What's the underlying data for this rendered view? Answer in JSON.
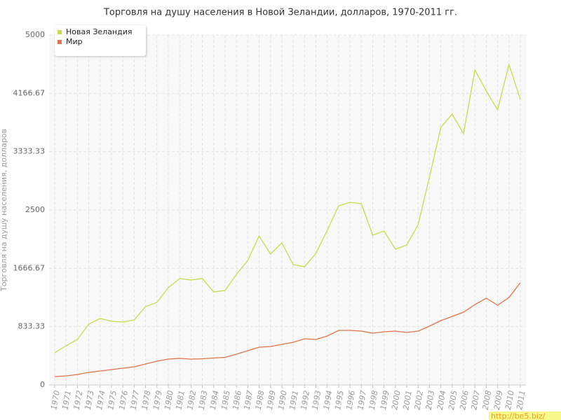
{
  "chart_data": {
    "type": "line",
    "title": "Торговля на душу населения в Новой Зеландии, долларов, 1970-2011 гг.",
    "y_label": "Торговля на душу населения, долларов",
    "watermark": "http://be5.biz/",
    "categories": [
      "1970",
      "1971",
      "1972",
      "1973",
      "1974",
      "1975",
      "1976",
      "1977",
      "1978",
      "1979",
      "1980",
      "1981",
      "1982",
      "1983",
      "1984",
      "1985",
      "1986",
      "1987",
      "1988",
      "1989",
      "1990",
      "1991",
      "1992",
      "1993",
      "1994",
      "1995",
      "1996",
      "1997",
      "1998",
      "1999",
      "2000",
      "2001",
      "2002",
      "2003",
      "2004",
      "2005",
      "2006",
      "2007",
      "2008",
      "2009",
      "2010",
      "2011"
    ],
    "series": [
      {
        "name": "Новая Зеландия",
        "color": "#c5dc4e",
        "values": [
          460,
          560,
          650,
          870,
          950,
          910,
          900,
          930,
          1120,
          1180,
          1390,
          1520,
          1500,
          1520,
          1330,
          1350,
          1580,
          1780,
          2130,
          1870,
          2030,
          1720,
          1690,
          1880,
          2210,
          2560,
          2610,
          2590,
          2140,
          2200,
          1940,
          2000,
          2290,
          2970,
          3680,
          3870,
          3590,
          4500,
          4200,
          3930,
          4580,
          4080
        ]
      },
      {
        "name": "Мир",
        "color": "#e07448",
        "values": [
          120,
          130,
          150,
          180,
          200,
          220,
          240,
          260,
          300,
          340,
          370,
          380,
          370,
          375,
          385,
          395,
          440,
          490,
          540,
          550,
          580,
          610,
          660,
          650,
          700,
          780,
          780,
          770,
          740,
          760,
          770,
          750,
          770,
          840,
          920,
          980,
          1040,
          1150,
          1240,
          1140,
          1250,
          1460
        ]
      }
    ],
    "ylim": [
      0,
      5000
    ],
    "yticks": [
      0,
      833.33,
      1666.67,
      2500,
      3333.33,
      4166.67,
      5000
    ],
    "grid": true,
    "legend": "top-left"
  }
}
